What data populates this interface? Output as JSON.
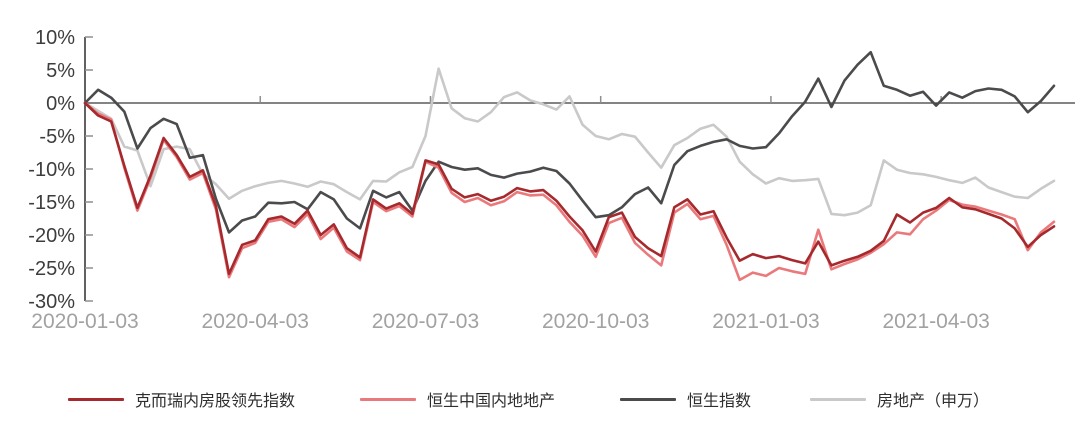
{
  "chart_data": {
    "type": "line",
    "title": "",
    "xlabel": "",
    "ylabel": "",
    "ylim": [
      -30,
      10
    ],
    "y_ticks": [
      10,
      5,
      0,
      -5,
      -10,
      -15,
      -20,
      -25,
      -30
    ],
    "y_tick_suffix": "%",
    "grid": "zero-baseline-only",
    "legend_position": "bottom",
    "x_tick_labels": [
      "2020-01-03",
      "2020-04-03",
      "2020-07-03",
      "2020-10-03",
      "2021-01-03",
      "2021-04-03"
    ],
    "x_tick_indices": [
      0,
      13,
      26,
      39,
      52,
      65
    ],
    "x": [
      "2020-01-03",
      "2020-01-10",
      "2020-01-17",
      "2020-01-24",
      "2020-01-31",
      "2020-02-07",
      "2020-02-14",
      "2020-02-21",
      "2020-02-28",
      "2020-03-06",
      "2020-03-13",
      "2020-03-20",
      "2020-03-27",
      "2020-04-03",
      "2020-04-10",
      "2020-04-17",
      "2020-04-24",
      "2020-05-01",
      "2020-05-08",
      "2020-05-15",
      "2020-05-22",
      "2020-05-29",
      "2020-06-05",
      "2020-06-12",
      "2020-06-19",
      "2020-06-26",
      "2020-07-03",
      "2020-07-10",
      "2020-07-17",
      "2020-07-24",
      "2020-07-31",
      "2020-08-07",
      "2020-08-14",
      "2020-08-21",
      "2020-08-28",
      "2020-09-04",
      "2020-09-11",
      "2020-09-18",
      "2020-09-25",
      "2020-10-02",
      "2020-10-09",
      "2020-10-16",
      "2020-10-23",
      "2020-10-30",
      "2020-11-06",
      "2020-11-13",
      "2020-11-20",
      "2020-11-27",
      "2020-12-04",
      "2020-12-11",
      "2020-12-18",
      "2020-12-25",
      "2021-01-01",
      "2021-01-08",
      "2021-01-15",
      "2021-01-22",
      "2021-01-29",
      "2021-02-05",
      "2021-02-12",
      "2021-02-19",
      "2021-02-26",
      "2021-03-05",
      "2021-03-12",
      "2021-03-19",
      "2021-03-26",
      "2021-04-02",
      "2021-04-09",
      "2021-04-16",
      "2021-04-23",
      "2021-04-30",
      "2021-05-07",
      "2021-05-14",
      "2021-05-21",
      "2021-05-28",
      "2021-06-04"
    ],
    "series": [
      {
        "name": "克而瑞内房股领先指数",
        "color": "#a62a2d",
        "values": [
          0.0,
          -1.9,
          -2.8,
          -9.5,
          -15.9,
          -11.0,
          -5.3,
          -7.9,
          -11.2,
          -10.2,
          -15.6,
          -25.9,
          -21.5,
          -20.8,
          -17.6,
          -17.2,
          -18.3,
          -16.3,
          -20.0,
          -18.4,
          -22.0,
          -23.4,
          -14.6,
          -16.0,
          -15.2,
          -16.8,
          -8.7,
          -9.3,
          -13.0,
          -14.3,
          -13.8,
          -14.8,
          -14.2,
          -12.9,
          -13.4,
          -13.2,
          -14.8,
          -17.2,
          -19.3,
          -22.5,
          -17.3,
          -16.6,
          -20.3,
          -22.0,
          -23.2,
          -15.8,
          -14.6,
          -16.9,
          -16.4,
          -20.4,
          -23.9,
          -22.9,
          -23.5,
          -23.2,
          -23.8,
          -24.3,
          -21.0,
          -24.6,
          -23.9,
          -23.3,
          -22.4,
          -20.9,
          -16.9,
          -18.1,
          -16.6,
          -15.9,
          -14.4,
          -15.8,
          -16.1,
          -16.8,
          -17.5,
          -19.0,
          -21.8,
          -20.0,
          -18.7
        ]
      },
      {
        "name": "恒生中国内地地产",
        "color": "#ea797c",
        "values": [
          0.0,
          -1.6,
          -2.5,
          -9.8,
          -16.3,
          -11.4,
          -5.6,
          -8.2,
          -11.6,
          -10.6,
          -16.1,
          -26.4,
          -22.0,
          -21.2,
          -18.0,
          -17.6,
          -18.8,
          -16.8,
          -20.6,
          -18.9,
          -22.5,
          -23.8,
          -15.0,
          -16.4,
          -15.6,
          -17.2,
          -8.9,
          -9.8,
          -13.6,
          -15.0,
          -14.4,
          -15.5,
          -14.9,
          -13.5,
          -14.0,
          -13.9,
          -15.5,
          -18.0,
          -20.1,
          -23.3,
          -18.2,
          -17.4,
          -21.2,
          -23.0,
          -24.6,
          -16.6,
          -15.3,
          -17.6,
          -17.1,
          -21.5,
          -26.8,
          -25.7,
          -26.2,
          -25.0,
          -25.5,
          -25.9,
          -19.2,
          -25.2,
          -24.4,
          -23.7,
          -22.7,
          -21.4,
          -19.6,
          -19.9,
          -17.6,
          -16.3,
          -14.7,
          -15.4,
          -15.7,
          -16.3,
          -16.9,
          -17.6,
          -22.3,
          -19.6,
          -18.0
        ]
      },
      {
        "name": "恒生指数",
        "color": "#4b4b4e",
        "values": [
          0.0,
          2.0,
          0.8,
          -1.3,
          -6.9,
          -3.8,
          -2.4,
          -3.2,
          -8.3,
          -7.9,
          -14.5,
          -19.6,
          -17.8,
          -17.2,
          -15.1,
          -15.2,
          -15.0,
          -16.1,
          -13.5,
          -14.6,
          -17.5,
          -19.0,
          -13.3,
          -14.3,
          -13.5,
          -16.3,
          -11.8,
          -8.9,
          -9.7,
          -10.1,
          -9.9,
          -10.9,
          -11.3,
          -10.7,
          -10.4,
          -9.8,
          -10.3,
          -12.2,
          -14.8,
          -17.3,
          -17.0,
          -15.8,
          -13.8,
          -12.8,
          -15.2,
          -9.4,
          -7.3,
          -6.5,
          -5.9,
          -5.5,
          -6.5,
          -6.9,
          -6.7,
          -4.6,
          -2.0,
          0.2,
          3.7,
          -0.6,
          3.4,
          5.8,
          7.7,
          2.6,
          2.0,
          1.1,
          1.7,
          -0.4,
          1.6,
          0.8,
          1.8,
          2.2,
          2.0,
          1.0,
          -1.4,
          0.3,
          2.6
        ]
      },
      {
        "name": "房地产（申万）",
        "color": "#c9c9c9",
        "values": [
          0.0,
          -1.2,
          -2.4,
          -6.6,
          -7.2,
          -12.6,
          -7.0,
          -6.6,
          -7.0,
          -10.8,
          -12.3,
          -14.5,
          -13.3,
          -12.6,
          -12.1,
          -11.8,
          -12.2,
          -12.7,
          -11.9,
          -12.3,
          -13.5,
          -14.6,
          -11.8,
          -11.9,
          -10.5,
          -9.7,
          -5.0,
          5.2,
          -0.8,
          -2.3,
          -2.8,
          -1.4,
          0.9,
          1.6,
          0.4,
          -0.2,
          -1.0,
          1.0,
          -3.3,
          -5.0,
          -5.5,
          -4.7,
          -5.1,
          -7.5,
          -9.8,
          -6.4,
          -5.3,
          -3.9,
          -3.3,
          -5.1,
          -8.9,
          -10.8,
          -12.2,
          -11.4,
          -11.8,
          -11.7,
          -11.5,
          -16.8,
          -17.0,
          -16.6,
          -15.5,
          -8.7,
          -10.1,
          -10.6,
          -10.8,
          -11.2,
          -11.7,
          -12.1,
          -11.3,
          -12.8,
          -13.5,
          -14.2,
          -14.4,
          -13.0,
          -11.8
        ]
      }
    ],
    "style": {
      "axis_line_color": "#3a3a3a",
      "tick_color": "#8f8f8f",
      "zero_line_color": "#3a3a3a",
      "y_label_color": "#3d3d3d",
      "x_label_color": "#a2a2a2",
      "background": "#ffffff"
    }
  }
}
